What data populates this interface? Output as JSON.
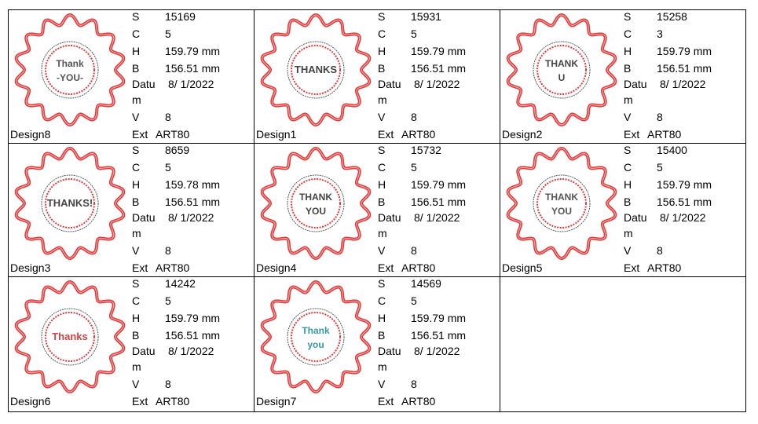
{
  "labels": {
    "s": "S",
    "c": "C",
    "h": "H",
    "b": "B",
    "datum1": "Datu",
    "datum2": "m",
    "v": "V",
    "ext": "Ext"
  },
  "colors": {
    "ring": "#e03c3c",
    "border": "#000000"
  },
  "designs": [
    {
      "name": "Design8",
      "s": "15169",
      "c": "5",
      "h": "159.79 mm",
      "b": "156.51 mm",
      "datum": "8/ 1/2022",
      "v": "8",
      "ext": "ART80",
      "badge": [
        "Thank",
        "-YOU-"
      ],
      "ink": "#555"
    },
    {
      "name": "Design1",
      "s": "15931",
      "c": "5",
      "h": "159.79 mm",
      "b": "156.51 mm",
      "datum": "8/ 1/2022",
      "v": "8",
      "ext": "ART80",
      "badge": [
        "THANKS"
      ],
      "ink": "#444"
    },
    {
      "name": "Design2",
      "s": "15258",
      "c": "3",
      "h": "159.79 mm",
      "b": "156.51 mm",
      "datum": "8/ 1/2022",
      "v": "8",
      "ext": "ART80",
      "badge": [
        "THANK",
        "U"
      ],
      "ink": "#444"
    },
    {
      "name": "Design3",
      "s": "8659",
      "c": "5",
      "h": "159.78 mm",
      "b": "156.51 mm",
      "datum": "8/ 1/2022",
      "v": "8",
      "ext": "ART80",
      "badge": [
        "THANKS!"
      ],
      "ink": "#444"
    },
    {
      "name": "Design4",
      "s": "15732",
      "c": "5",
      "h": "159.79 mm",
      "b": "156.51 mm",
      "datum": "8/ 1/2022",
      "v": "8",
      "ext": "ART80",
      "badge": [
        "THANK",
        "YOU"
      ],
      "ink": "#444"
    },
    {
      "name": "Design5",
      "s": "15400",
      "c": "5",
      "h": "159.79 mm",
      "b": "156.51 mm",
      "datum": "8/ 1/2022",
      "v": "8",
      "ext": "ART80",
      "badge": [
        "THANK",
        "YOU"
      ],
      "ink": "#555"
    },
    {
      "name": "Design6",
      "s": "14242",
      "c": "5",
      "h": "159.79 mm",
      "b": "156.51 mm",
      "datum": "8/ 1/2022",
      "v": "8",
      "ext": "ART80",
      "badge": [
        "Thanks"
      ],
      "ink": "#c44"
    },
    {
      "name": "Design7",
      "s": "14569",
      "c": "5",
      "h": "159.79 mm",
      "b": "156.51 mm",
      "datum": "8/ 1/2022",
      "v": "8",
      "ext": "ART80",
      "badge": [
        "Thank",
        "you"
      ],
      "ink": "#3a9aa0"
    }
  ]
}
